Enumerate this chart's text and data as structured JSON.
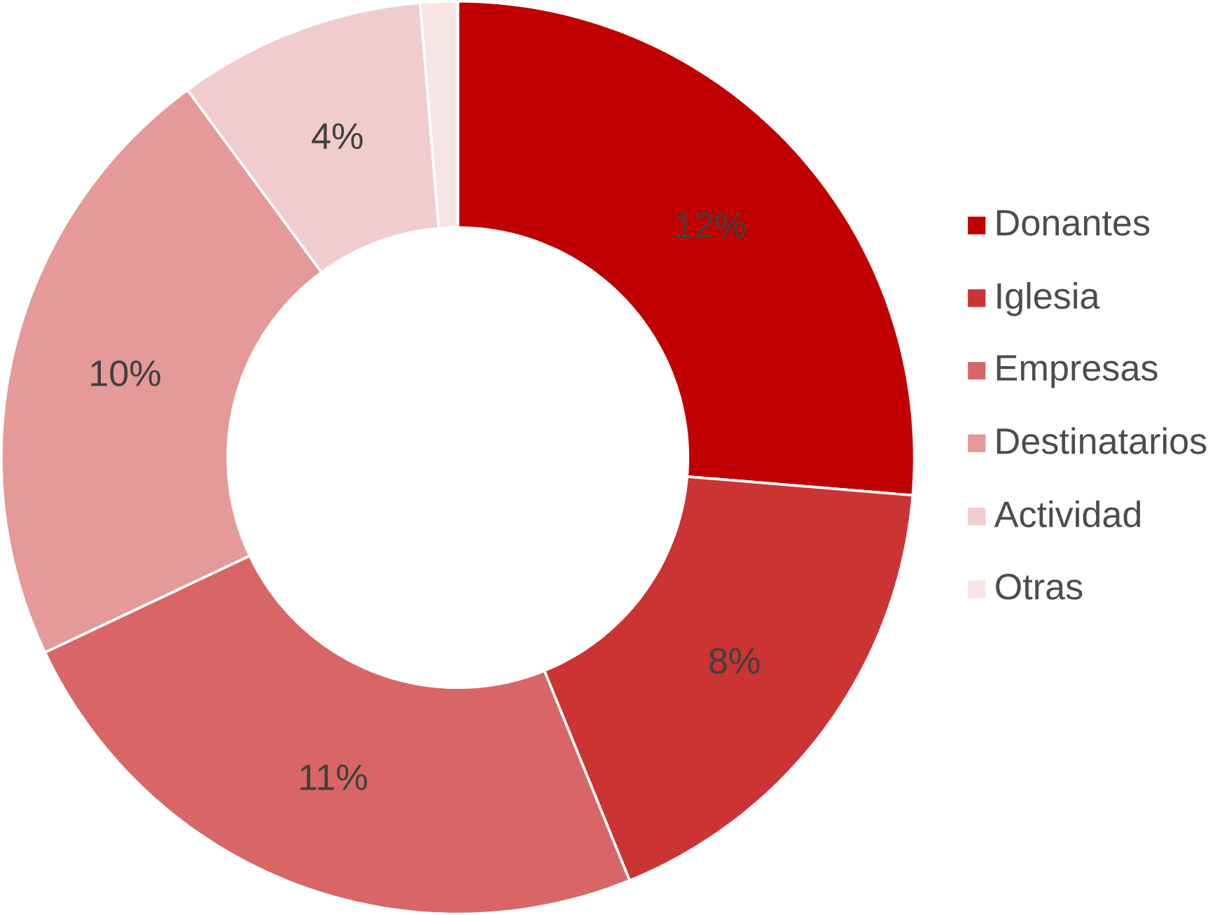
{
  "chart_data": {
    "type": "donut",
    "categories": [
      "Donantes",
      "Iglesia",
      "Empresas",
      "Destinatarios",
      "Actividad",
      "Otras"
    ],
    "values": [
      12,
      8,
      11,
      10,
      4,
      0.6
    ],
    "value_labels": [
      "12%",
      "8%",
      "11%",
      "10%",
      "4%",
      null
    ],
    "colors": [
      "#c00000",
      "#cc3333",
      "#d96666",
      "#e59999",
      "#f0cccc",
      "#f7e4e4"
    ],
    "legend": "right"
  }
}
